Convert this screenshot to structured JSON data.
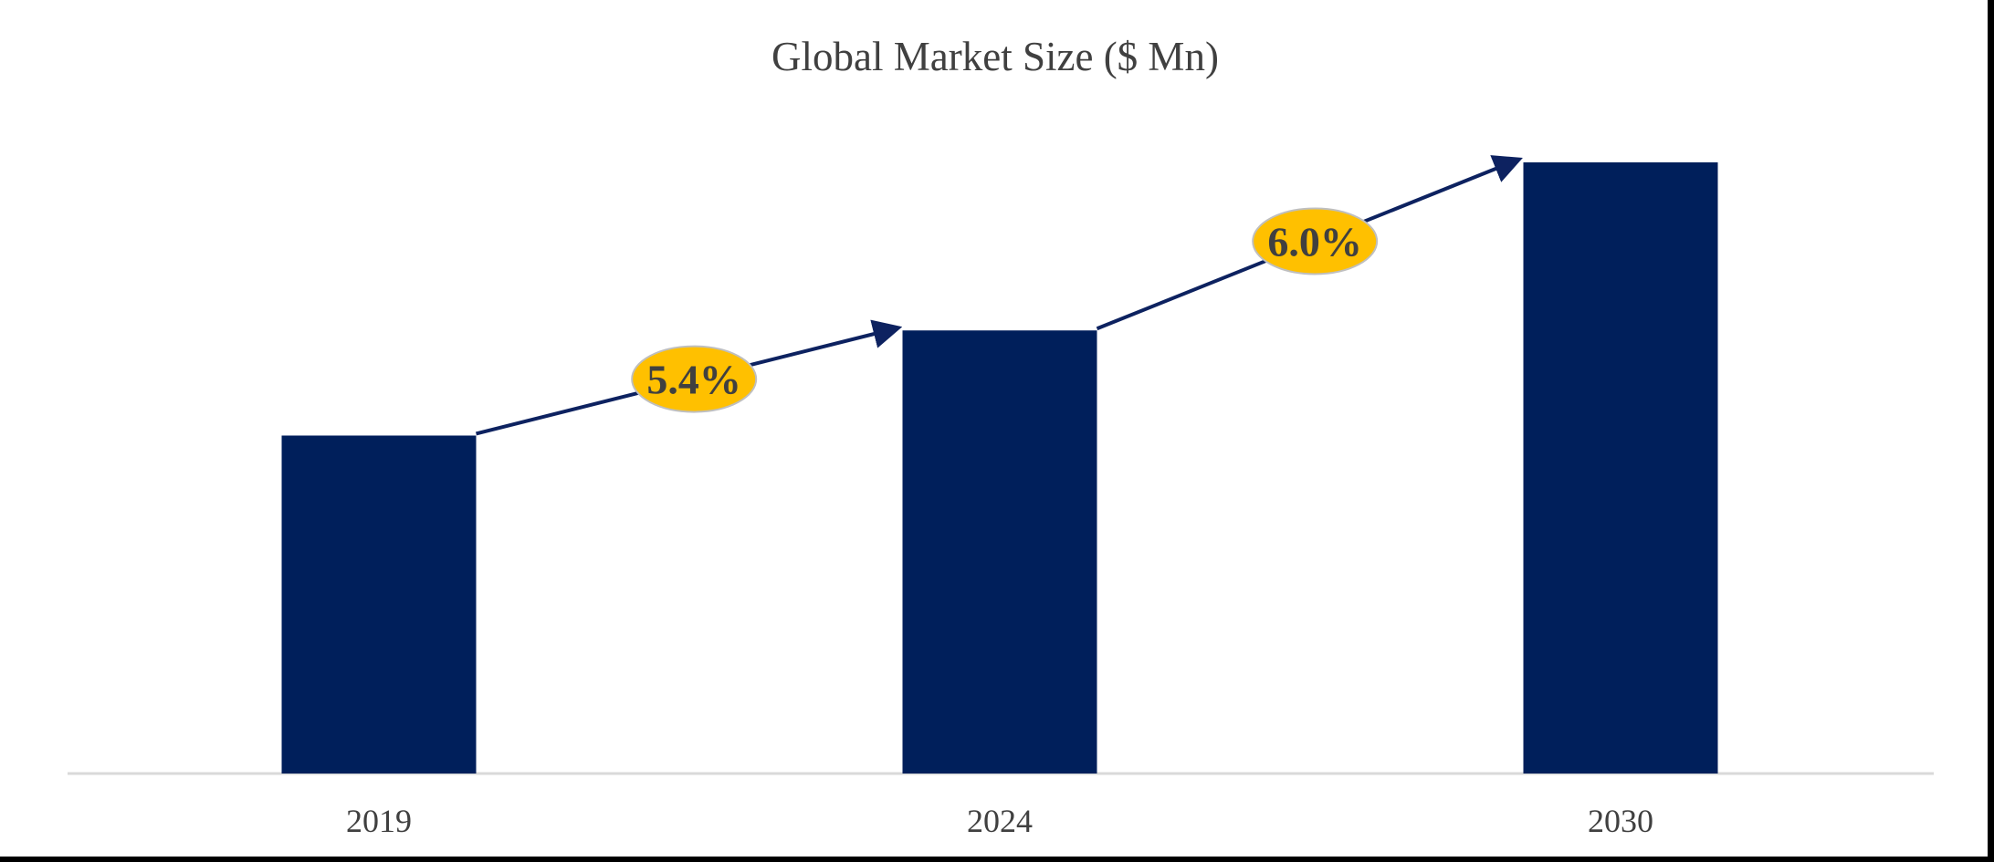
{
  "chart_data": {
    "type": "bar",
    "title": "Global Market Size ($ Mn)",
    "xlabel": "",
    "ylabel": "",
    "categories": [
      "2019",
      "2024",
      "2030"
    ],
    "values": [
      55.3,
      72.5,
      100
    ],
    "value_note": "relative bar heights (no axis values printed)",
    "ylim": [
      0,
      100
    ],
    "grid": false,
    "legend": "none",
    "bar_color": "#001F5B",
    "annotations": [
      {
        "from": "2019",
        "to": "2024",
        "label": "5.4%"
      },
      {
        "from": "2024",
        "to": "2030",
        "label": "6.0%"
      }
    ],
    "annotation_fill": "#FFC000",
    "annotation_text_color": "#404040",
    "arrow_color": "#0D2260"
  }
}
